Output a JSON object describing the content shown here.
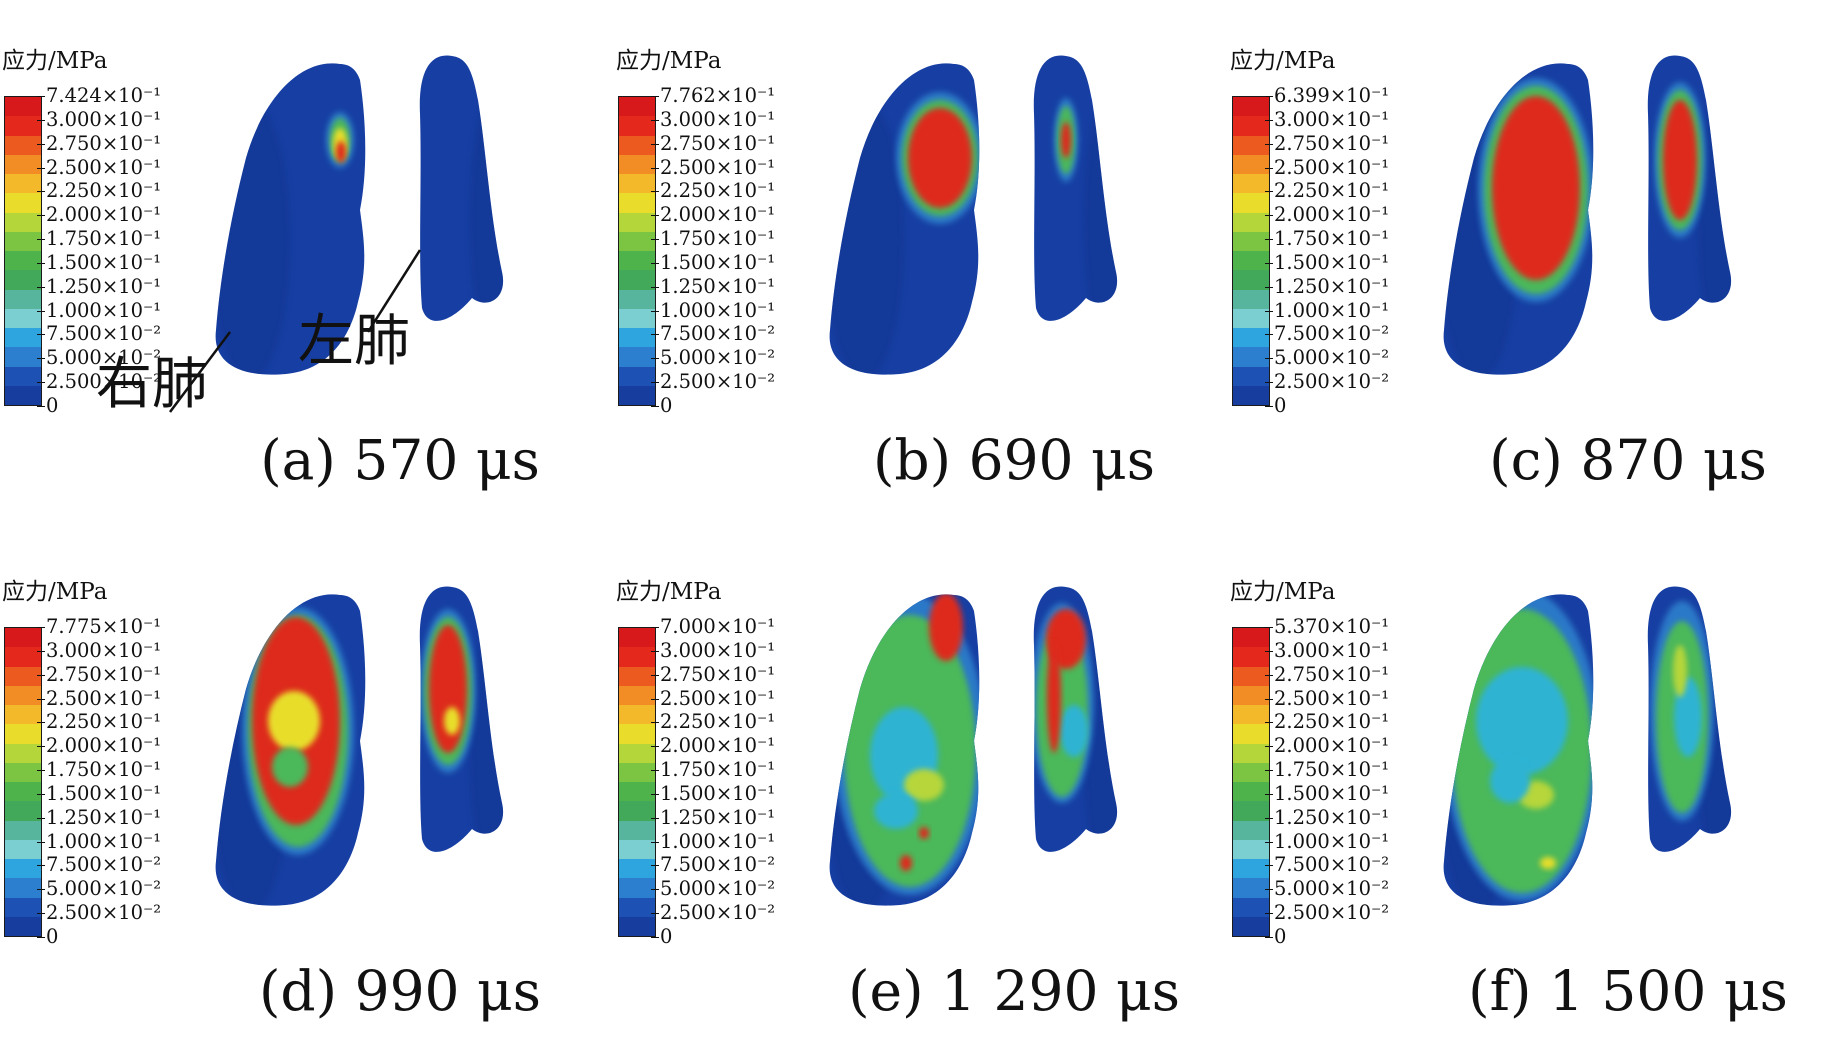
{
  "unit_label": "应力/MPa",
  "scale_colors": [
    "#d7191c",
    "#e5281c",
    "#ec5a1f",
    "#f28d26",
    "#f4b92a",
    "#e9dc2b",
    "#b5d63a",
    "#7cc543",
    "#4db34a",
    "#42a85a",
    "#58b59d",
    "#7ccfd0",
    "#2ea5de",
    "#2c7fcf",
    "#1d51b3",
    "#173e9e"
  ],
  "lung_colors": {
    "base": "#173fa3",
    "shade": "#102f86",
    "edge": "#2a78c8",
    "cyan": "#2fb3d3",
    "green": "#4cb85a",
    "lime": "#b6d63a",
    "yellow": "#e8de2c",
    "orange": "#ef8b26",
    "red": "#dd2a1d"
  },
  "panels": [
    {
      "id": "a",
      "caption": "(a) 570 μs",
      "max_label": "7.424×10⁻¹",
      "state": 1
    },
    {
      "id": "b",
      "caption": "(b) 690 μs",
      "max_label": "7.762×10⁻¹",
      "state": 2
    },
    {
      "id": "c",
      "caption": "(c) 870 μs",
      "max_label": "6.399×10⁻¹",
      "state": 3
    },
    {
      "id": "d",
      "caption": "(d) 990 μs",
      "max_label": "7.775×10⁻¹",
      "state": 4
    },
    {
      "id": "e",
      "caption": "(e) 1 290 μs",
      "max_label": "7.000×10⁻¹",
      "state": 5
    },
    {
      "id": "f",
      "caption": "(f) 1 500 μs",
      "max_label": "5.370×10⁻¹",
      "state": 6
    }
  ],
  "scale_ticks": [
    "3.000×10⁻¹",
    "2.750×10⁻¹",
    "2.500×10⁻¹",
    "2.250×10⁻¹",
    "2.000×10⁻¹",
    "1.750×10⁻¹",
    "1.500×10⁻¹",
    "1.250×10⁻¹",
    "1.000×10⁻¹",
    "7.500×10⁻²",
    "5.000×10⁻²",
    "2.500×10⁻²",
    "0"
  ],
  "labels": {
    "right_lung": "右肺",
    "left_lung": "左肺"
  }
}
